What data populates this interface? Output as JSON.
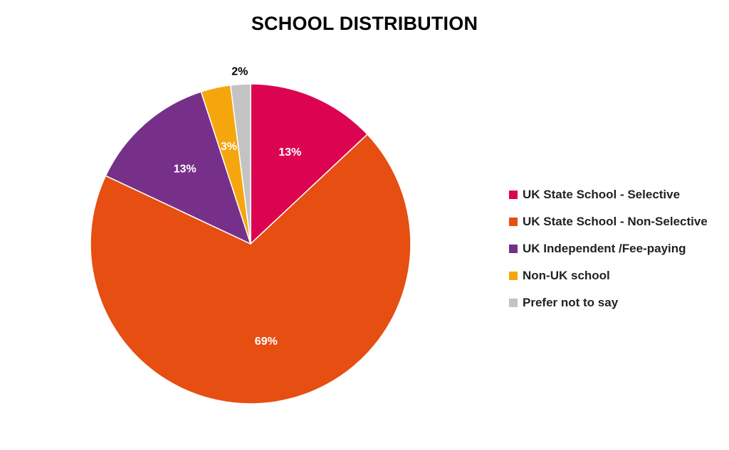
{
  "chart_data": {
    "type": "pie",
    "title": "SCHOOL DISTRIBUTION",
    "legend_position": "right",
    "start_angle_deg": 0,
    "direction": "clockwise",
    "slices": [
      {
        "name": "UK State School - Selective",
        "value": 13,
        "label": "13%",
        "color": "#DC0451",
        "label_color": "#ffffff",
        "label_placement": "inside"
      },
      {
        "name": "UK State School - Non-Selective",
        "value": 69,
        "label": "69%",
        "color": "#E64E12",
        "label_color": "#ffffff",
        "label_placement": "inside"
      },
      {
        "name": "UK Independent /Fee-paying",
        "value": 13,
        "label": "13%",
        "color": "#76308A",
        "label_color": "#ffffff",
        "label_placement": "inside"
      },
      {
        "name": "Non-UK school",
        "value": 3,
        "label": "3%",
        "color": "#F6A60D",
        "label_color": "#ffffff",
        "label_placement": "inside"
      },
      {
        "name": "Prefer not to say",
        "value": 2,
        "label": "2%",
        "color": "#C3C3C3",
        "label_color": "#000000",
        "label_placement": "outside"
      }
    ]
  }
}
